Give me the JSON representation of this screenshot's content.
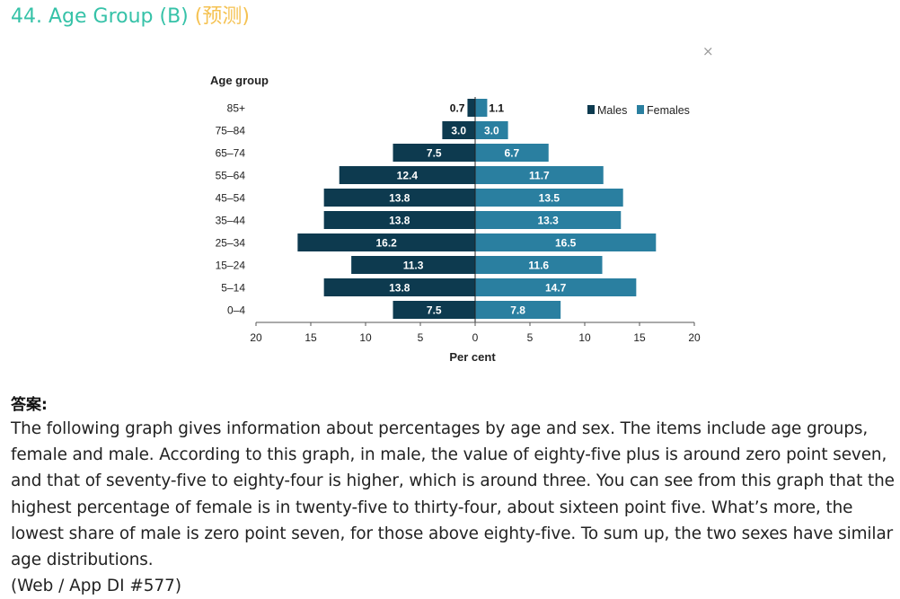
{
  "header": {
    "title": "44. Age Group (B)",
    "tag": "(预测)",
    "close_symbol": "×"
  },
  "chart_data": {
    "type": "bar",
    "orientation": "horizontal-pyramid",
    "ylabel": "Age group",
    "xlabel": "Per cent",
    "categories": [
      "85+",
      "75–84",
      "65–74",
      "55–64",
      "45–54",
      "35–44",
      "25–34",
      "15–24",
      "5–14",
      "0–4"
    ],
    "series": [
      {
        "name": "Males",
        "values": [
          0.7,
          3.0,
          7.5,
          12.4,
          13.8,
          13.8,
          16.2,
          11.3,
          13.8,
          7.5
        ],
        "color": "#0d3a4f"
      },
      {
        "name": "Females",
        "values": [
          1.1,
          3.0,
          6.7,
          11.7,
          13.5,
          13.3,
          16.5,
          11.6,
          14.7,
          7.8
        ],
        "color": "#2a7fa0"
      }
    ],
    "xticks": [
      "20",
      "15",
      "10",
      "5",
      "0",
      "5",
      "10",
      "15",
      "20"
    ],
    "xlim": [
      -20,
      20
    ],
    "legend": "top-right",
    "grid": false
  },
  "answer": {
    "label": "答案:",
    "text": "The following graph gives information about percentages by age and sex. The items include age groups, female and male. According to this graph, in male, the value of eighty-five plus is around zero point seven, and that of seventy-five to eighty-four is higher, which is around three. You can see from this graph that the highest percentage of female is in twenty-five to thirty-four, about sixteen point five. What’s more, the lowest share of male is zero point seven, for those above eighty-five. To sum up, the two sexes have similar age distributions.",
    "source": "(Web / App DI #577)"
  }
}
